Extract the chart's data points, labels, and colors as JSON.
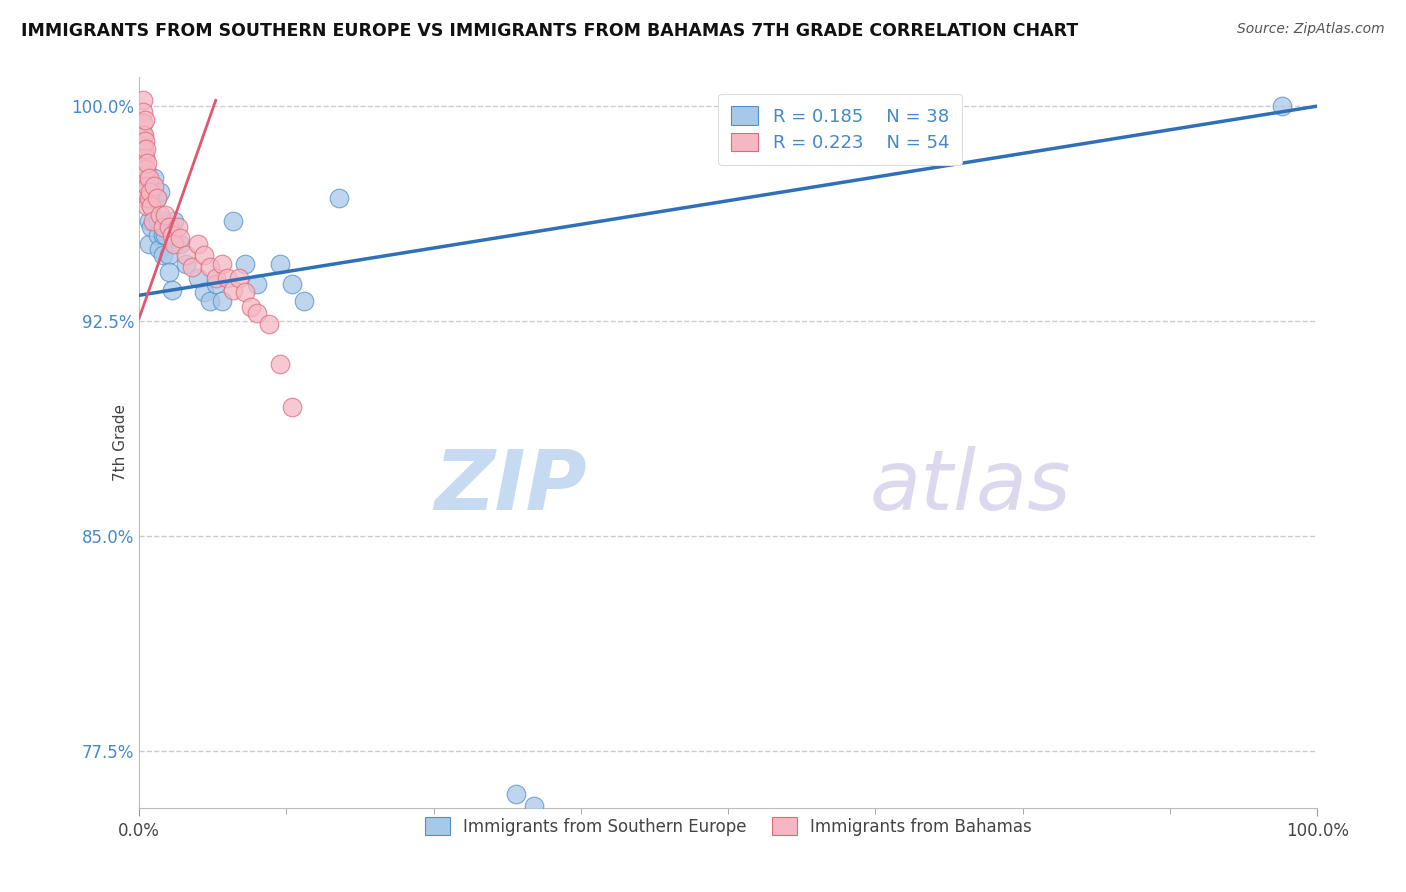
{
  "title": "IMMIGRANTS FROM SOUTHERN EUROPE VS IMMIGRANTS FROM BAHAMAS 7TH GRADE CORRELATION CHART",
  "source_text": "Source: ZipAtlas.com",
  "ylabel": "7th Grade",
  "xlim": [
    0,
    1.0
  ],
  "ylim": [
    0.755,
    1.01
  ],
  "xtick_positions": [
    0.0,
    1.0
  ],
  "xtick_labels": [
    "0.0%",
    "100.0%"
  ],
  "ytick_values": [
    0.775,
    0.85,
    0.925,
    1.0
  ],
  "ytick_labels": [
    "77.5%",
    "85.0%",
    "92.5%",
    "100.0%"
  ],
  "legend_r1": "R = 0.185",
  "legend_n1": "N = 38",
  "legend_r2": "R = 0.223",
  "legend_n2": "N = 54",
  "blue_color": "#a8c8e8",
  "pink_color": "#f4b8c4",
  "blue_edge_color": "#5090c8",
  "pink_edge_color": "#e06878",
  "blue_line_color": "#3070b8",
  "pink_line_color": "#e05870",
  "watermark_zip_color": "#c0d8f0",
  "watermark_atlas_color": "#d0c8e8",
  "grid_color": "#cccccc",
  "ytick_color": "#4488cc",
  "blue_trend_x0": 0.0,
  "blue_trend_y0": 0.934,
  "blue_trend_x1": 1.0,
  "blue_trend_y1": 1.0,
  "pink_trend_x0": 0.0,
  "pink_trend_y0": 0.926,
  "pink_trend_x1": 0.065,
  "pink_trend_y1": 1.002,
  "blue_x": [
    0.005,
    0.005,
    0.008,
    0.008,
    0.01,
    0.01,
    0.012,
    0.013,
    0.015,
    0.016,
    0.016,
    0.017,
    0.018,
    0.02,
    0.02,
    0.02,
    0.022,
    0.025,
    0.025,
    0.028,
    0.03,
    0.035,
    0.04,
    0.05,
    0.055,
    0.06,
    0.065,
    0.07,
    0.08,
    0.09,
    0.1,
    0.12,
    0.13,
    0.14,
    0.17,
    0.32,
    0.335,
    0.97
  ],
  "blue_y": [
    0.975,
    0.968,
    0.96,
    0.952,
    0.965,
    0.958,
    0.97,
    0.975,
    0.968,
    0.96,
    0.955,
    0.95,
    0.97,
    0.96,
    0.955,
    0.948,
    0.955,
    0.948,
    0.942,
    0.936,
    0.96,
    0.952,
    0.945,
    0.94,
    0.935,
    0.932,
    0.938,
    0.932,
    0.96,
    0.945,
    0.938,
    0.945,
    0.938,
    0.932,
    0.968,
    0.76,
    0.756,
    1.0
  ],
  "pink_x": [
    0.003,
    0.003,
    0.003,
    0.003,
    0.003,
    0.003,
    0.003,
    0.003,
    0.004,
    0.004,
    0.004,
    0.004,
    0.005,
    0.005,
    0.005,
    0.005,
    0.005,
    0.006,
    0.006,
    0.006,
    0.007,
    0.007,
    0.007,
    0.008,
    0.008,
    0.009,
    0.01,
    0.012,
    0.013,
    0.015,
    0.018,
    0.02,
    0.022,
    0.025,
    0.028,
    0.03,
    0.033,
    0.035,
    0.04,
    0.045,
    0.05,
    0.055,
    0.06,
    0.065,
    0.07,
    0.075,
    0.08,
    0.085,
    0.09,
    0.095,
    0.1,
    0.11,
    0.12,
    0.13
  ],
  "pink_y": [
    1.002,
    0.998,
    0.994,
    0.99,
    0.986,
    0.98,
    0.975,
    0.97,
    0.99,
    0.985,
    0.978,
    0.972,
    0.995,
    0.988,
    0.982,
    0.976,
    0.968,
    0.985,
    0.978,
    0.97,
    0.98,
    0.972,
    0.965,
    0.975,
    0.968,
    0.97,
    0.965,
    0.96,
    0.972,
    0.968,
    0.962,
    0.958,
    0.962,
    0.958,
    0.955,
    0.952,
    0.958,
    0.954,
    0.948,
    0.944,
    0.952,
    0.948,
    0.944,
    0.94,
    0.945,
    0.94,
    0.936,
    0.94,
    0.935,
    0.93,
    0.928,
    0.924,
    0.91,
    0.895
  ]
}
